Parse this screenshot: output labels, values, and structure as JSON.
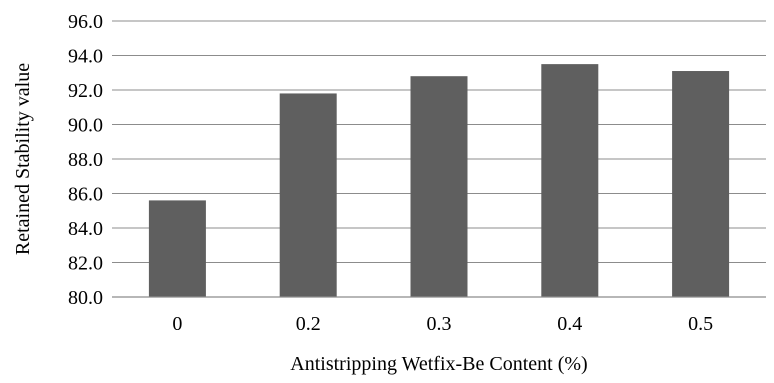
{
  "chart_data": {
    "type": "bar",
    "categories": [
      "0",
      "0.2",
      "0.3",
      "0.4",
      "0.5"
    ],
    "values": [
      85.6,
      91.8,
      92.8,
      93.5,
      93.1
    ],
    "xlabel": "Antistripping Wetfix-Be Content (%)",
    "ylabel": "Retained Stability value",
    "ylim": [
      80,
      96
    ],
    "yticks": [
      "80.0",
      "82.0",
      "84.0",
      "86.0",
      "88.0",
      "90.0",
      "92.0",
      "94.0",
      "96.0"
    ],
    "grid": true,
    "bar_color": "#5f5f5f",
    "legend": "none"
  }
}
